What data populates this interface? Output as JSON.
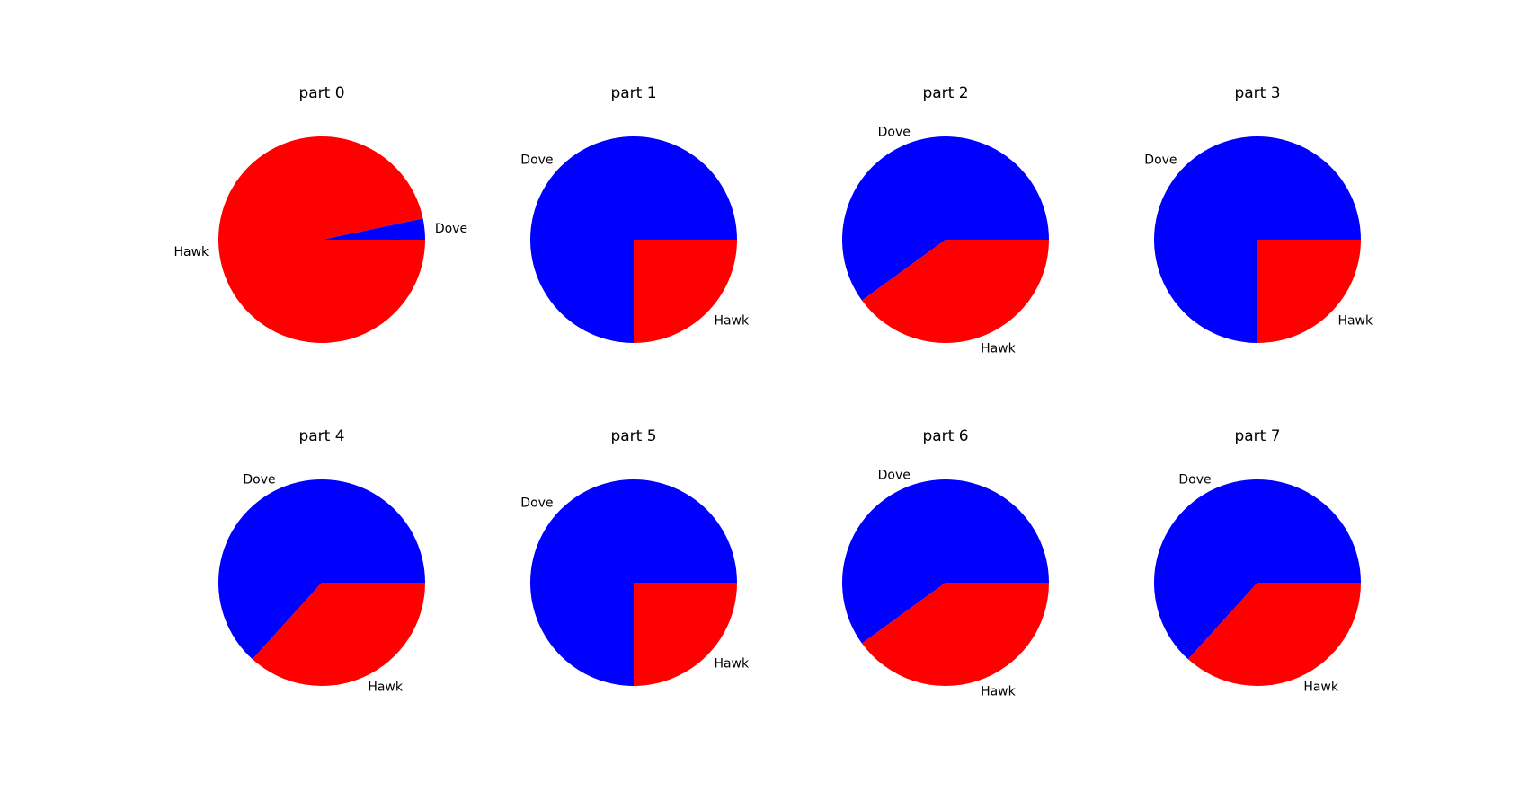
{
  "chart_data": [
    {
      "type": "pie",
      "title": "part 0",
      "labels": [
        "Dove",
        "Hawk"
      ],
      "values": [
        0.033,
        0.967
      ],
      "colors": [
        "#0000ff",
        "#ff0000"
      ]
    },
    {
      "type": "pie",
      "title": "part 1",
      "labels": [
        "Dove",
        "Hawk"
      ],
      "values": [
        0.75,
        0.25
      ],
      "colors": [
        "#0000ff",
        "#ff0000"
      ]
    },
    {
      "type": "pie",
      "title": "part 2",
      "labels": [
        "Dove",
        "Hawk"
      ],
      "values": [
        0.6,
        0.4
      ],
      "colors": [
        "#0000ff",
        "#ff0000"
      ]
    },
    {
      "type": "pie",
      "title": "part 3",
      "labels": [
        "Dove",
        "Hawk"
      ],
      "values": [
        0.75,
        0.25
      ],
      "colors": [
        "#0000ff",
        "#ff0000"
      ]
    },
    {
      "type": "pie",
      "title": "part 4",
      "labels": [
        "Dove",
        "Hawk"
      ],
      "values": [
        0.633,
        0.367
      ],
      "colors": [
        "#0000ff",
        "#ff0000"
      ]
    },
    {
      "type": "pie",
      "title": "part 5",
      "labels": [
        "Dove",
        "Hawk"
      ],
      "values": [
        0.75,
        0.25
      ],
      "colors": [
        "#0000ff",
        "#ff0000"
      ]
    },
    {
      "type": "pie",
      "title": "part 6",
      "labels": [
        "Dove",
        "Hawk"
      ],
      "values": [
        0.6,
        0.4
      ],
      "colors": [
        "#0000ff",
        "#ff0000"
      ]
    },
    {
      "type": "pie",
      "title": "part 7",
      "labels": [
        "Dove",
        "Hawk"
      ],
      "values": [
        0.633,
        0.367
      ],
      "colors": [
        "#0000ff",
        "#ff0000"
      ]
    }
  ]
}
